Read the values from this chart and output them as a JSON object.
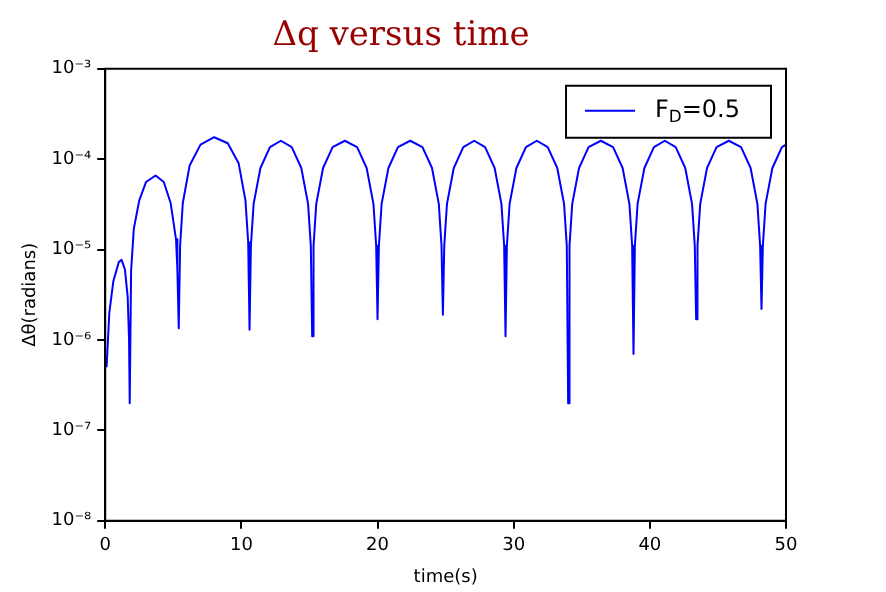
{
  "chart_data": {
    "type": "line",
    "title": "Δq versus time",
    "xlabel": "time(s)",
    "ylabel": "Δθ(radians)",
    "log": "y",
    "grid": false,
    "legend": "top right",
    "marker": "none",
    "line_style": "solid",
    "xlim": [
      0,
      50
    ],
    "xticks": [
      0,
      10,
      20,
      30,
      40,
      50
    ],
    "ylim": [
      1e-08,
      0.001
    ],
    "yticks": [
      {
        "value": 1e-08,
        "label": "10⁻⁸"
      },
      {
        "value": 1e-07,
        "label": "10⁻⁷"
      },
      {
        "value": 1e-06,
        "label": "10⁻⁶"
      },
      {
        "value": 1e-05,
        "label": "10⁻⁵"
      },
      {
        "value": 0.0001,
        "label": "10⁻⁴"
      },
      {
        "value": 0.001,
        "label": "10⁻³"
      }
    ],
    "series": [
      {
        "name": "F$_{D}$=0.5",
        "color": "#0000ff",
        "x": [
          0.1,
          0.3,
          0.6,
          1.0,
          1.2,
          1.45,
          1.65,
          1.75,
          1.8,
          1.9,
          2.1,
          2.5,
          3.0,
          3.7,
          4.3,
          4.8,
          5.2,
          5.3,
          5.4,
          5.5,
          5.7,
          6.2,
          7.0,
          8.0,
          9.0,
          9.8,
          10.3,
          10.5,
          10.6,
          10.7,
          10.9,
          11.4,
          12.1,
          12.9,
          13.7,
          14.4,
          14.9,
          15.1,
          15.2,
          15.3,
          15.5,
          16.0,
          16.7,
          17.6,
          18.5,
          19.2,
          19.7,
          19.9,
          20.0,
          20.1,
          20.3,
          20.8,
          21.5,
          22.4,
          23.3,
          24.0,
          24.5,
          24.7,
          24.8,
          24.9,
          25.1,
          25.6,
          26.3,
          27.1,
          27.9,
          28.6,
          29.1,
          29.3,
          29.4,
          29.5,
          29.7,
          30.2,
          30.9,
          31.7,
          32.5,
          33.2,
          33.7,
          33.9,
          34.0,
          34.1,
          34.3,
          34.8,
          35.5,
          36.4,
          37.3,
          38.0,
          38.5,
          38.7,
          38.8,
          38.9,
          39.1,
          39.6,
          40.3,
          41.1,
          41.9,
          42.6,
          43.1,
          43.3,
          43.4,
          43.5,
          43.7,
          44.2,
          44.9,
          45.8,
          46.7,
          47.4,
          47.9,
          48.1,
          48.2,
          48.3,
          48.5,
          49.0,
          49.7,
          50.0
        ],
        "values": [
          5e-07,
          2e-06,
          4.5e-06,
          7.3e-06,
          7.7e-06,
          6e-06,
          3e-06,
          1e-06,
          2e-07,
          5.8e-06,
          1.7e-05,
          3.5e-05,
          5.6e-05,
          6.6e-05,
          5.6e-05,
          3.3e-05,
          1.3e-05,
          6e-06,
          1.35e-06,
          1.1e-05,
          3.3e-05,
          8.5e-05,
          0.000145,
          0.000175,
          0.00015,
          9e-05,
          3.5e-05,
          1.2e-05,
          1.3e-06,
          1.1e-05,
          3.2e-05,
          8e-05,
          0.000136,
          0.00016,
          0.000136,
          8e-05,
          3.2e-05,
          1.1e-05,
          1.1e-06,
          1.1e-05,
          3.2e-05,
          8e-05,
          0.000136,
          0.00016,
          0.000136,
          8e-05,
          3.2e-05,
          1.1e-05,
          1.7e-06,
          1.1e-05,
          3.2e-05,
          8e-05,
          0.000136,
          0.00016,
          0.000136,
          8e-05,
          3.2e-05,
          1.1e-05,
          1.9e-06,
          1.1e-05,
          3.2e-05,
          8e-05,
          0.000136,
          0.00016,
          0.000136,
          8e-05,
          3.2e-05,
          1.1e-05,
          1.1e-06,
          1.1e-05,
          3.2e-05,
          8e-05,
          0.000136,
          0.00016,
          0.000136,
          8e-05,
          3.2e-05,
          1.1e-05,
          2e-07,
          1.1e-05,
          3.2e-05,
          8e-05,
          0.000136,
          0.00016,
          0.000136,
          8e-05,
          3.2e-05,
          1.1e-05,
          7e-07,
          1.1e-05,
          3.2e-05,
          8e-05,
          0.000136,
          0.00016,
          0.000136,
          8e-05,
          3.2e-05,
          1.1e-05,
          1.7e-06,
          1.1e-05,
          3.2e-05,
          8e-05,
          0.000136,
          0.00016,
          0.000136,
          8e-05,
          3.2e-05,
          1.1e-05,
          2.2e-06,
          1.1e-05,
          3.2e-05,
          8e-05,
          0.000136,
          0.000145
        ]
      }
    ]
  }
}
